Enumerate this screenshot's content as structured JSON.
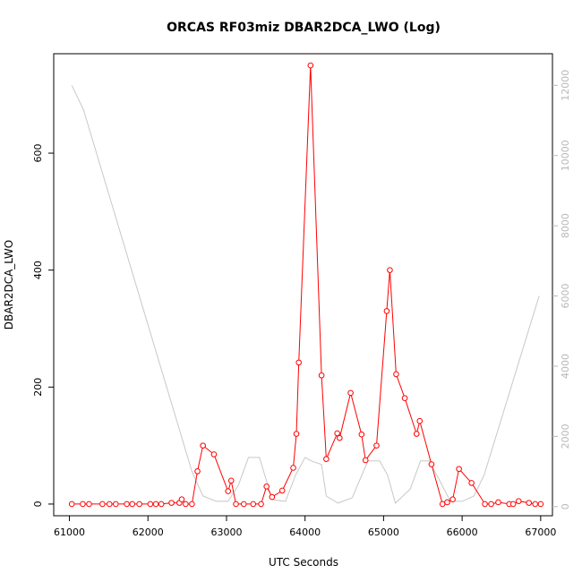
{
  "chart_data": {
    "type": "line",
    "title": "ORCAS RF03miz DBAR2DCA_LWO (Log)",
    "xlabel": "UTC Seconds",
    "ylabel": "DBAR2DCA_LWO",
    "xlim": [
      60800,
      67150
    ],
    "ylim": [
      -20,
      770
    ],
    "y2lim": [
      -260,
      12900
    ],
    "x_ticks": [
      61000,
      62000,
      63000,
      64000,
      65000,
      66000,
      67000
    ],
    "y_ticks": [
      0,
      200,
      400,
      600
    ],
    "y2_ticks": [
      0,
      2000,
      4000,
      6000,
      8000,
      10000,
      12000
    ],
    "grid": false,
    "colors": {
      "primary": "#ff0000",
      "secondary": "#c8c8c8",
      "axis": "#000000",
      "right_axis": "#b8b8b8"
    },
    "series": [
      {
        "axis": "left",
        "color": "#ff0000",
        "x": [
          61030,
          61170,
          61250,
          61420,
          61510,
          61590,
          61730,
          61800,
          61890,
          62030,
          62100,
          62170,
          62300,
          62400,
          62430,
          62480,
          62560,
          62630,
          62700,
          62840,
          63020,
          63060,
          63120,
          63220,
          63340,
          63440,
          63510,
          63580,
          63710,
          63850,
          63890,
          63920,
          64070,
          64210,
          64270,
          64410,
          64440,
          64580,
          64720,
          64770,
          64910,
          65040,
          65080,
          65160,
          65270,
          65420,
          65460,
          65610,
          65750,
          65810,
          65880,
          65960,
          66120,
          66290,
          66370,
          66460,
          66600,
          66650,
          66720,
          66850,
          66930,
          67000
        ],
        "y": [
          0,
          0,
          0,
          0,
          0,
          0,
          0,
          0,
          0,
          0,
          0,
          0,
          2,
          2,
          8,
          0,
          0,
          56,
          100,
          85,
          22,
          40,
          0,
          0,
          0,
          0,
          30,
          12,
          23,
          62,
          120,
          242,
          750,
          220,
          77,
          121,
          113,
          190,
          119,
          75,
          100,
          330,
          400,
          222,
          181,
          120,
          142,
          68,
          0,
          3,
          8,
          60,
          36,
          0,
          0,
          3,
          0,
          0,
          5,
          2,
          0,
          0
        ]
      },
      {
        "axis": "right",
        "color": "#c8c8c8",
        "x": [
          61030,
          61180,
          62560,
          62700,
          62870,
          63020,
          63150,
          63280,
          63420,
          63500,
          63580,
          63750,
          63880,
          64000,
          64080,
          64210,
          64270,
          64420,
          64600,
          64800,
          64950,
          65050,
          65150,
          65340,
          65470,
          65580,
          65700,
          65850,
          66000,
          66150,
          66280,
          66980
        ],
        "y": [
          12000,
          11300,
          1000,
          300,
          150,
          150,
          600,
          1400,
          1400,
          800,
          200,
          150,
          900,
          1400,
          1300,
          1200,
          300,
          100,
          250,
          1300,
          1300,
          900,
          100,
          500,
          1300,
          1300,
          800,
          150,
          150,
          300,
          900,
          6000
        ]
      }
    ]
  }
}
